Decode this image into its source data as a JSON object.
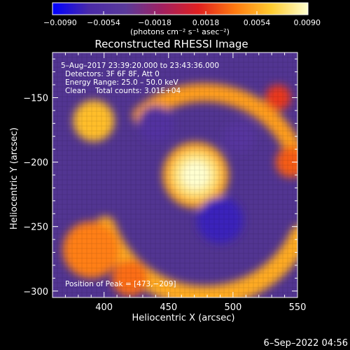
{
  "chart_data": {
    "type": "heatmap",
    "title": "Reconstructed RHESSI Image",
    "xlabel": "Heliocentric X (arcsec)",
    "ylabel": "Heliocentric Y (arcsec)",
    "xlim": [
      360,
      550
    ],
    "ylim": [
      -305,
      -115
    ],
    "x_ticks": [
      400,
      450,
      500,
      550
    ],
    "y_ticks": [
      -150,
      -200,
      -250,
      -300
    ],
    "x_tick_labels": [
      "400",
      "450",
      "500",
      "550"
    ],
    "y_tick_labels": [
      "−150",
      "−200",
      "−250",
      "−300"
    ],
    "colorbar": {
      "min": -0.009,
      "max": 0.009,
      "ticks": [
        "−0.0090",
        "−0.0054",
        "−0.0018",
        "0.0018",
        "0.0054",
        "0.0090"
      ],
      "unit_label": "(photons cm⁻² s⁻¹ asec⁻²)",
      "colors": [
        "#0000ff",
        "#4a2aa8",
        "#5a3a9a",
        "#a12060",
        "#e02020",
        "#ff7a10",
        "#ffcc30",
        "#ffffd0"
      ]
    },
    "annotations": {
      "time_range": "5–Aug–2017 23:39:20.000 to 23:43:36.000",
      "detectors": "Detectors: 3F 6F 8F, Att 0",
      "energy": "Energy Range: 25.0 – 50.0 keV",
      "clean": "Clean    Total counts: 3.01E+04",
      "peak": "Position of Peak = [473,−209]"
    },
    "peak": {
      "x": 473,
      "y": -209
    },
    "features": [
      {
        "shape": "core",
        "cx": 471,
        "cy": -210,
        "r": 16,
        "level": 0.009
      },
      {
        "shape": "arc",
        "cx": 478,
        "cy": -222,
        "r": 82,
        "from": 200,
        "to": 335,
        "w": 16,
        "level": 0.0054
      },
      {
        "shape": "arc",
        "cx": 478,
        "cy": -222,
        "r": 76,
        "from": 15,
        "to": 130,
        "w": 14,
        "level": 0.005
      },
      {
        "shape": "blob",
        "cx": 392,
        "cy": -168,
        "r": 16,
        "level": 0.006
      },
      {
        "shape": "blob",
        "cx": 390,
        "cy": -268,
        "r": 22,
        "level": 0.004
      },
      {
        "shape": "blob",
        "cx": 420,
        "cy": -290,
        "r": 14,
        "level": 0.0035
      },
      {
        "shape": "blob",
        "cx": 545,
        "cy": -200,
        "r": 12,
        "level": 0.003
      },
      {
        "shape": "blob",
        "cx": 535,
        "cy": -150,
        "r": 10,
        "level": 0.002
      },
      {
        "shape": "blob",
        "cx": 490,
        "cy": -245,
        "r": 18,
        "level": -0.007
      },
      {
        "shape": "blob",
        "cx": 440,
        "cy": -170,
        "r": 14,
        "level": -0.005
      },
      {
        "shape": "blob",
        "cx": 505,
        "cy": -180,
        "r": 12,
        "level": -0.0045
      }
    ]
  },
  "footer": {
    "timestamp": "6–Sep–2022 04:56"
  }
}
